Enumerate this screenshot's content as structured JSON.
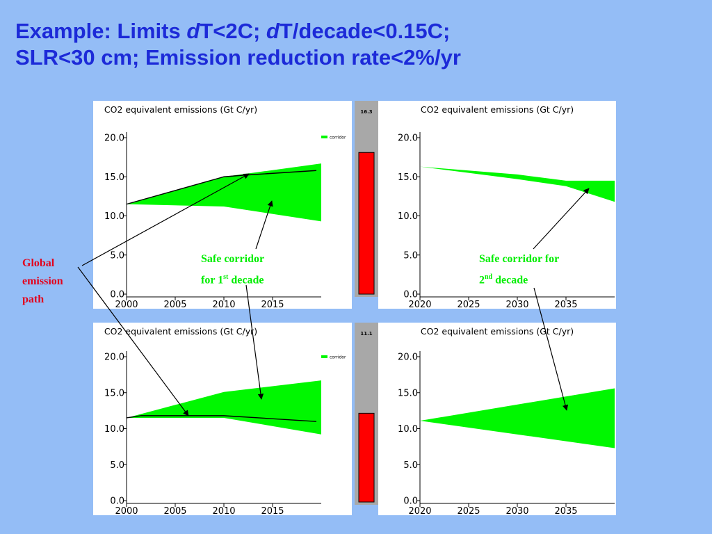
{
  "slide": {
    "title_line1": [
      "Example: Limits ",
      "d",
      "T<2C; ",
      "d",
      "T/decade<0.15C;"
    ],
    "title_line2": "SLR<30 cm; Emission reduction rate<2%/yr"
  },
  "annotations": {
    "global_path": [
      "Global",
      "emission",
      "path"
    ],
    "corridor1": {
      "line1": "Safe corridor",
      "line2_pre": "for 1",
      "line2_sup": "st",
      "line2_post": " decade"
    },
    "corridor2": {
      "line1": "Safe corridor for",
      "line2_pre": "2",
      "line2_sup": "nd",
      "line2_post": " decade"
    }
  },
  "colors": {
    "title": "#1c2ad8",
    "corridor_fill": "#00f700",
    "annotation_red": "#e3001b",
    "annotation_green": "#00ee00",
    "gauge_bar": "#ff0000",
    "gauge_bg": "#a8a8a8",
    "background": "#94bdf6"
  },
  "chart_data": [
    {
      "id": "top-left",
      "type": "area",
      "title": "CO2 equivalent emissions (Gt C/yr)",
      "xlim": [
        2000,
        2020
      ],
      "ylim": [
        0,
        20
      ],
      "xticks": [
        "2000",
        "2005",
        "2010",
        "2015"
      ],
      "yticks": [
        "0.0",
        "5.0",
        "10.0",
        "15.0",
        "20.0"
      ],
      "legend": {
        "label": "corridor",
        "position": "top-right"
      },
      "corridor": {
        "x": [
          2000,
          2010,
          2020
        ],
        "upper": [
          11.5,
          15.0,
          16.7
        ],
        "lower": [
          11.5,
          11.2,
          9.3
        ]
      },
      "series": [
        {
          "x": [
            2000,
            2010,
            2012,
            2019.5
          ],
          "y": [
            11.5,
            15.0,
            15.2,
            15.8
          ]
        }
      ]
    },
    {
      "id": "top-right",
      "type": "area",
      "title": "CO2 equivalent emissions (Gt C/yr)",
      "xlim": [
        2020,
        2040
      ],
      "ylim": [
        0,
        20
      ],
      "xticks": [
        "2020",
        "2025",
        "2030",
        "2035"
      ],
      "yticks": [
        "0.0",
        "5.0",
        "10.0",
        "15.0",
        "20.0"
      ],
      "corridor": {
        "x": [
          2020,
          2030,
          2035,
          2040
        ],
        "upper": [
          16.3,
          15.3,
          14.5,
          14.5
        ],
        "lower": [
          16.3,
          14.7,
          13.8,
          11.8
        ]
      },
      "series": []
    },
    {
      "id": "bottom-left",
      "type": "area",
      "title": "CO2 equivalent emissions (Gt C/yr)",
      "xlim": [
        2000,
        2020
      ],
      "ylim": [
        0,
        20
      ],
      "xticks": [
        "2000",
        "2005",
        "2010",
        "2015"
      ],
      "yticks": [
        "0.0",
        "5.0",
        "10.0",
        "15.0",
        "20.0"
      ],
      "legend": {
        "label": "corridor",
        "position": "top-right"
      },
      "corridor": {
        "x": [
          2000,
          2010,
          2020
        ],
        "upper": [
          11.5,
          15.1,
          16.7
        ],
        "lower": [
          11.5,
          11.5,
          9.2
        ]
      },
      "series": [
        {
          "x": [
            2000,
            2001.5,
            2010,
            2019.5
          ],
          "y": [
            11.5,
            11.8,
            11.8,
            11.0
          ]
        }
      ]
    },
    {
      "id": "bottom-right",
      "type": "area",
      "title": "CO2 equivalent emissions (Gt C/yr)",
      "xlim": [
        2020,
        2040
      ],
      "ylim": [
        0,
        20
      ],
      "xticks": [
        "2020",
        "2025",
        "2030",
        "2035"
      ],
      "yticks": [
        "0.0",
        "5.0",
        "10.0",
        "15.0",
        "20.0"
      ],
      "corridor": {
        "x": [
          2020,
          2040
        ],
        "upper": [
          11.1,
          15.6
        ],
        "lower": [
          11.1,
          7.3
        ]
      },
      "series": []
    }
  ],
  "gauges": [
    {
      "id": "gauge-top",
      "value_label": "16.3",
      "value": 16.3,
      "max": 20
    },
    {
      "id": "gauge-bottom",
      "value_label": "11.1",
      "value": 11.1,
      "max": 20
    }
  ]
}
